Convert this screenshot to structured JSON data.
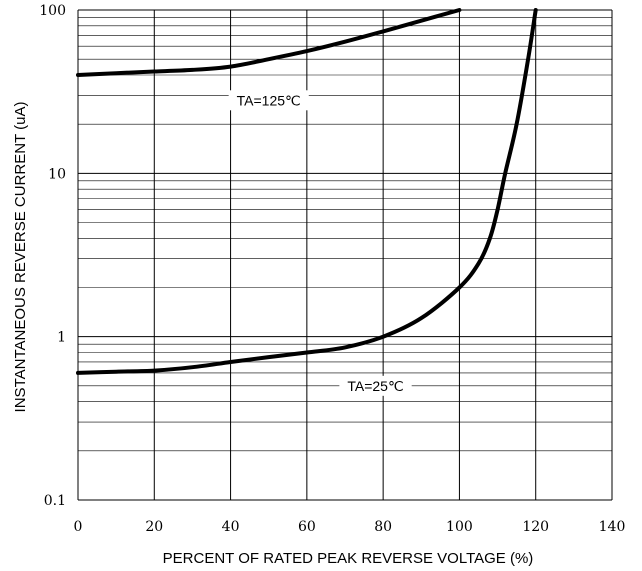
{
  "chart_data": {
    "type": "line",
    "title": "",
    "xlabel": "PERCENT OF RATED PEAK REVERSE VOLTAGE (%)",
    "ylabel": "INSTANTANEOUS REVERSE CURRENT (uA)",
    "xlim": [
      0,
      140
    ],
    "ylim": [
      0.1,
      100
    ],
    "yscale": "log",
    "grid": true,
    "x_ticks": [
      "0",
      "20",
      "40",
      "60",
      "80",
      "100",
      "120",
      "140"
    ],
    "y_ticks": [
      "0.1",
      "1",
      "10",
      "100"
    ],
    "series": [
      {
        "name": "TA=125℃",
        "x": [
          0,
          10,
          20,
          30,
          40,
          50,
          60,
          70,
          80,
          90,
          100
        ],
        "y": [
          40,
          41,
          42,
          43,
          45,
          50,
          56,
          64,
          74,
          86,
          100
        ]
      },
      {
        "name": "TA=25℃",
        "x": [
          0,
          10,
          20,
          30,
          40,
          50,
          60,
          70,
          80,
          90,
          100,
          105,
          108,
          110,
          112,
          115,
          118,
          120
        ],
        "y": [
          0.6,
          0.61,
          0.62,
          0.65,
          0.7,
          0.75,
          0.8,
          0.86,
          1.0,
          1.3,
          2.0,
          2.8,
          4.0,
          6.0,
          10,
          20,
          50,
          100
        ]
      }
    ],
    "annotations": [
      {
        "text": "TA=125℃",
        "x": 50,
        "y": 28
      },
      {
        "text": "TA=25℃",
        "x": 78,
        "y": 0.5
      }
    ]
  }
}
